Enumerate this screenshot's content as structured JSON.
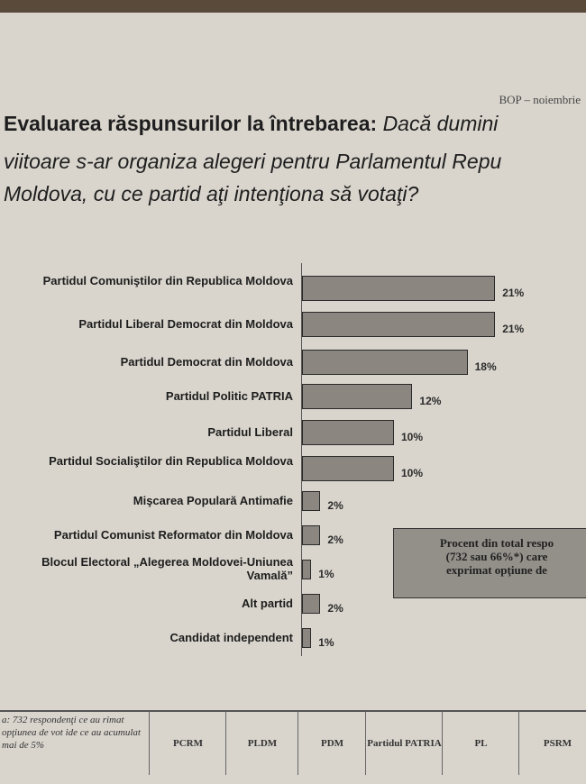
{
  "header": "BOP – noiembrie",
  "chart_data": {
    "type": "bar",
    "orientation": "horizontal",
    "title": {
      "bold": "Evaluarea răspunsurilor la întrebarea:",
      "lines": [
        "Dacă dumini",
        "viitoare s-ar organiza alegeri pentru Parlamentul Repu",
        "Moldova, cu ce partid aţi intenţiona să votaţi?"
      ]
    },
    "categories": [
      "Partidul Comuniştilor din Republica Moldova",
      "Partidul Liberal Democrat din Moldova",
      "Partidul Democrat din Moldova",
      "Partidul Politic PATRIA",
      "Partidul Liberal",
      "Partidul Socialiştilor din Republica Moldova",
      "Mişcarea Populară Antimafie",
      "Partidul Comunist Reformator din Moldova",
      "Blocul Electoral „Alegerea Moldovei-Uniunea Vamală”",
      "Alt partid",
      "Candidat independent"
    ],
    "values": [
      21,
      21,
      18,
      12,
      10,
      10,
      2,
      2,
      1,
      2,
      1
    ],
    "value_labels": [
      "21%",
      "21%",
      "18%",
      "12%",
      "10%",
      "10%",
      "2%",
      "2%",
      "1%",
      "2%",
      "1%"
    ],
    "color": "#8b8680"
  },
  "callout": [
    "Procent din total respo",
    "(732 sau 66%*) care",
    "exprimat opţiune de"
  ],
  "table": {
    "note": "a: 732 respondenţi ce au rimat opţiunea de vot ide ce au acumulat mai de 5%",
    "headers": [
      "PCRM",
      "PLDM",
      "PDM",
      "Partidul PATRIA",
      "PL",
      "PSRM"
    ]
  }
}
